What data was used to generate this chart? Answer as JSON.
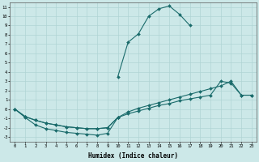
{
  "xlabel": "Humidex (Indice chaleur)",
  "bg_color": "#cce8e8",
  "grid_color": "#b0d4d4",
  "line_color": "#1a6b6b",
  "ylim": [
    -3.5,
    11.5
  ],
  "xlim": [
    -0.5,
    23.5
  ],
  "line1_x": [
    10,
    11,
    12,
    13,
    14,
    15,
    16,
    17
  ],
  "line1_y": [
    3.5,
    7.2,
    8.1,
    10.0,
    10.8,
    11.1,
    10.2,
    9.0
  ],
  "line2_x": [
    0,
    1,
    2,
    3,
    4,
    5,
    6,
    7,
    8,
    9,
    10,
    11,
    12,
    13,
    14,
    15,
    16,
    17,
    18,
    19,
    20,
    21,
    22,
    23
  ],
  "line2_y": [
    0.0,
    -0.8,
    -1.2,
    -1.5,
    -1.7,
    -1.9,
    -2.0,
    -2.1,
    -2.1,
    -2.0,
    -0.9,
    -0.5,
    -0.2,
    0.1,
    0.4,
    0.6,
    0.9,
    1.1,
    1.3,
    1.5,
    3.0,
    2.8,
    1.5,
    1.5
  ],
  "line3_x": [
    0,
    1,
    2,
    3,
    4,
    5,
    6,
    7,
    8,
    9,
    10,
    11,
    12,
    13,
    14,
    15,
    16,
    17,
    18,
    19,
    20,
    21,
    22,
    23
  ],
  "line3_y": [
    0.0,
    -0.8,
    -1.2,
    -1.5,
    -1.7,
    -1.9,
    -2.0,
    -2.1,
    -2.1,
    -2.0,
    -0.9,
    -0.3,
    0.1,
    0.4,
    0.7,
    1.0,
    1.3,
    1.6,
    1.9,
    2.2,
    2.5,
    3.0,
    1.5,
    1.5
  ],
  "line4_x": [
    0,
    1,
    2,
    3,
    4,
    5,
    6,
    7,
    8,
    9,
    10
  ],
  "line4_y": [
    0.0,
    -0.9,
    -1.7,
    -2.1,
    -2.3,
    -2.5,
    -2.6,
    -2.7,
    -2.8,
    -2.6,
    -0.9
  ],
  "yticks": [
    -3,
    -2,
    -1,
    0,
    1,
    2,
    3,
    4,
    5,
    6,
    7,
    8,
    9,
    10,
    11
  ]
}
